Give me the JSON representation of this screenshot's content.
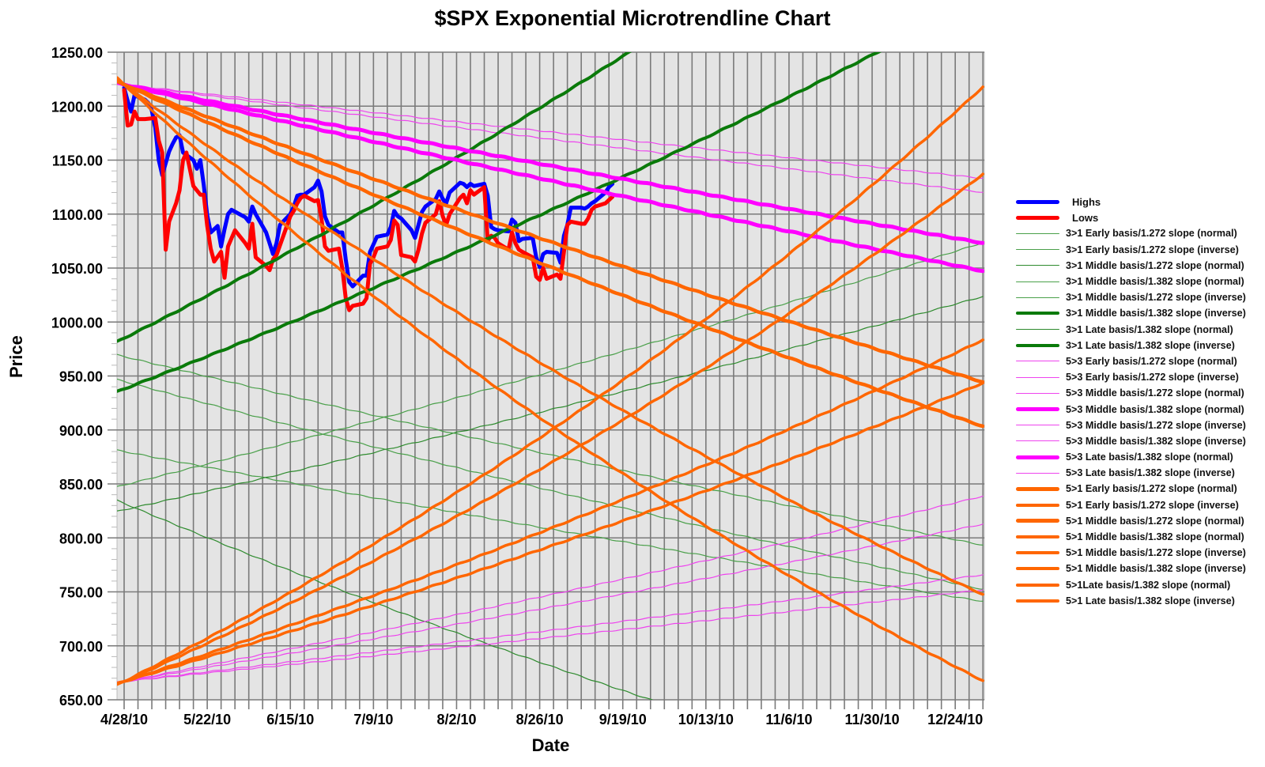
{
  "chart_data": {
    "type": "line",
    "title": "$SPX Exponential Microtrendline Chart",
    "xlabel": "Date",
    "ylabel": "Price",
    "ylim": [
      650,
      1250
    ],
    "yticks": [
      "1250.00",
      "1200.00",
      "1150.00",
      "1100.00",
      "1050.00",
      "1000.00",
      "950.00",
      "900.00",
      "850.00",
      "800.00",
      "750.00",
      "700.00",
      "650.00"
    ],
    "xtick_labels": [
      "4/28/10",
      "5/22/10",
      "6/15/10",
      "7/9/10",
      "8/2/10",
      "8/26/10",
      "9/19/10",
      "10/13/10",
      "11/6/10",
      "11/30/10",
      "12/24/10"
    ],
    "x_start": "4/28/10",
    "x_end": "1/1/11",
    "grid": true,
    "vertical_grid_every_days": 4,
    "legend_position": "right",
    "series": [
      {
        "name": "Highs",
        "color": "#0000ff",
        "width": 5,
        "kind": "price",
        "points": [
          [
            0,
            1217
          ],
          [
            1,
            1205
          ],
          [
            2,
            1195
          ],
          [
            3,
            1210
          ],
          [
            6,
            1206
          ],
          [
            7,
            1203
          ],
          [
            8,
            1196
          ],
          [
            9,
            1180
          ],
          [
            10,
            1150
          ],
          [
            11,
            1136
          ],
          [
            13,
            1158
          ],
          [
            14,
            1165
          ],
          [
            15,
            1171
          ],
          [
            16,
            1173
          ],
          [
            17,
            1157
          ],
          [
            20,
            1150
          ],
          [
            21,
            1142
          ],
          [
            22,
            1150
          ],
          [
            23,
            1127
          ],
          [
            24,
            1099
          ],
          [
            25,
            1083
          ],
          [
            27,
            1089
          ],
          [
            28,
            1070
          ],
          [
            29,
            1086
          ],
          [
            30,
            1100
          ],
          [
            31,
            1104
          ],
          [
            35,
            1097
          ],
          [
            36,
            1093
          ],
          [
            37,
            1107
          ],
          [
            38,
            1100
          ],
          [
            41,
            1083
          ],
          [
            42,
            1073
          ],
          [
            43,
            1063
          ],
          [
            44,
            1073
          ],
          [
            45,
            1090
          ],
          [
            48,
            1100
          ],
          [
            49,
            1107
          ],
          [
            50,
            1117
          ],
          [
            51,
            1118
          ],
          [
            52,
            1118
          ],
          [
            55,
            1125
          ],
          [
            56,
            1131
          ],
          [
            57,
            1121
          ],
          [
            58,
            1098
          ],
          [
            59,
            1090
          ],
          [
            62,
            1083
          ],
          [
            63,
            1083
          ],
          [
            64,
            1058
          ],
          [
            65,
            1037
          ],
          [
            66,
            1033
          ],
          [
            69,
            1043
          ],
          [
            70,
            1043
          ],
          [
            71,
            1065
          ],
          [
            72,
            1072
          ],
          [
            73,
            1079
          ],
          [
            76,
            1081
          ],
          [
            77,
            1088
          ],
          [
            78,
            1103
          ],
          [
            79,
            1098
          ],
          [
            80,
            1096
          ],
          [
            83,
            1085
          ],
          [
            84,
            1078
          ],
          [
            85,
            1090
          ],
          [
            86,
            1102
          ],
          [
            87,
            1107
          ],
          [
            90,
            1114
          ],
          [
            91,
            1121
          ],
          [
            92,
            1114
          ],
          [
            93,
            1110
          ],
          [
            94,
            1120
          ],
          [
            97,
            1129
          ],
          [
            98,
            1128
          ],
          [
            99,
            1125
          ],
          [
            100,
            1128
          ],
          [
            101,
            1126
          ],
          [
            104,
            1128
          ],
          [
            105,
            1117
          ],
          [
            106,
            1088
          ],
          [
            107,
            1086
          ],
          [
            108,
            1085
          ],
          [
            111,
            1084
          ],
          [
            112,
            1095
          ],
          [
            113,
            1092
          ],
          [
            114,
            1075
          ],
          [
            115,
            1077
          ],
          [
            118,
            1078
          ],
          [
            119,
            1060
          ],
          [
            120,
            1051
          ],
          [
            121,
            1063
          ],
          [
            122,
            1065
          ],
          [
            125,
            1064
          ],
          [
            126,
            1055
          ],
          [
            127,
            1080
          ],
          [
            128,
            1090
          ],
          [
            129,
            1106
          ],
          [
            132,
            1106
          ],
          [
            133,
            1105
          ],
          [
            134,
            1107
          ],
          [
            135,
            1110
          ],
          [
            136,
            1112
          ],
          [
            139,
            1120
          ],
          [
            140,
            1125
          ],
          [
            141,
            1128
          ]
        ]
      },
      {
        "name": "Lows",
        "color": "#ff0000",
        "width": 5,
        "kind": "price",
        "points": [
          [
            0,
            1215
          ],
          [
            1,
            1182
          ],
          [
            2,
            1183
          ],
          [
            3,
            1195
          ],
          [
            4,
            1188
          ],
          [
            6,
            1188
          ],
          [
            9,
            1189
          ],
          [
            10,
            1168
          ],
          [
            11,
            1157
          ],
          [
            12,
            1067
          ],
          [
            13,
            1093
          ],
          [
            15,
            1110
          ],
          [
            16,
            1122
          ],
          [
            17,
            1150
          ],
          [
            18,
            1157
          ],
          [
            20,
            1126
          ],
          [
            22,
            1118
          ],
          [
            23,
            1118
          ],
          [
            24,
            1089
          ],
          [
            25,
            1068
          ],
          [
            26,
            1056
          ],
          [
            28,
            1065
          ],
          [
            29,
            1041
          ],
          [
            30,
            1070
          ],
          [
            32,
            1085
          ],
          [
            35,
            1073
          ],
          [
            36,
            1068
          ],
          [
            37,
            1091
          ],
          [
            38,
            1060
          ],
          [
            41,
            1052
          ],
          [
            42,
            1048
          ],
          [
            43,
            1058
          ],
          [
            44,
            1062
          ],
          [
            48,
            1098
          ],
          [
            49,
            1103
          ],
          [
            50,
            1110
          ],
          [
            51,
            1115
          ],
          [
            52,
            1117
          ],
          [
            55,
            1112
          ],
          [
            56,
            1113
          ],
          [
            57,
            1095
          ],
          [
            58,
            1070
          ],
          [
            59,
            1066
          ],
          [
            62,
            1068
          ],
          [
            63,
            1050
          ],
          [
            64,
            1022
          ],
          [
            65,
            1011
          ],
          [
            66,
            1015
          ],
          [
            69,
            1017
          ],
          [
            70,
            1022
          ],
          [
            71,
            1054
          ],
          [
            72,
            1060
          ],
          [
            73,
            1068
          ],
          [
            76,
            1070
          ],
          [
            77,
            1076
          ],
          [
            78,
            1094
          ],
          [
            79,
            1090
          ],
          [
            80,
            1062
          ],
          [
            83,
            1060
          ],
          [
            84,
            1056
          ],
          [
            85,
            1067
          ],
          [
            86,
            1082
          ],
          [
            87,
            1092
          ],
          [
            90,
            1100
          ],
          [
            91,
            1112
          ],
          [
            92,
            1098
          ],
          [
            93,
            1090
          ],
          [
            94,
            1100
          ],
          [
            97,
            1115
          ],
          [
            98,
            1118
          ],
          [
            99,
            1110
          ],
          [
            100,
            1122
          ],
          [
            101,
            1118
          ],
          [
            104,
            1125
          ],
          [
            105,
            1075
          ],
          [
            106,
            1080
          ],
          [
            107,
            1078
          ],
          [
            108,
            1073
          ],
          [
            111,
            1067
          ],
          [
            112,
            1083
          ],
          [
            113,
            1073
          ],
          [
            114,
            1067
          ],
          [
            115,
            1065
          ],
          [
            118,
            1060
          ],
          [
            119,
            1042
          ],
          [
            120,
            1039
          ],
          [
            121,
            1050
          ],
          [
            122,
            1040
          ],
          [
            125,
            1044
          ],
          [
            126,
            1040
          ],
          [
            127,
            1065
          ],
          [
            128,
            1090
          ],
          [
            129,
            1093
          ],
          [
            132,
            1091
          ],
          [
            133,
            1091
          ],
          [
            134,
            1096
          ],
          [
            135,
            1104
          ],
          [
            136,
            1107
          ],
          [
            139,
            1110
          ],
          [
            140,
            1113
          ],
          [
            141,
            1116
          ]
        ]
      },
      {
        "name": "3>1 Early basis/1.272 slope (normal)",
        "color": "#4aa04a",
        "width": 1.2,
        "kind": "trend",
        "start": 849,
        "end": 1074
      },
      {
        "name": "3>1 Early basis/1.272 slope (inverse)",
        "color": "#4aa04a",
        "width": 1.2,
        "kind": "trend",
        "start": 880,
        "end": 741
      },
      {
        "name": "3>1 Middle basis/1.272 slope (normal)",
        "color": "#2e8b2e",
        "width": 1.2,
        "kind": "trend",
        "start": 826,
        "end": 1024
      },
      {
        "name": "3>1 Middle basis/1.382 slope (normal)",
        "color": "#4aa04a",
        "width": 1.2,
        "kind": "trend",
        "start": 968,
        "end": 793
      },
      {
        "name": "3>1 Middle basis/1.272 slope (inverse)",
        "color": "#4aa04a",
        "width": 1.2,
        "kind": "trend",
        "start": 945,
        "end": 752
      },
      {
        "name": "3>1 Middle basis/1.382 slope (inverse)",
        "color": "#0a7a0a",
        "width": 4,
        "kind": "trend",
        "start": 985,
        "end": 1478
      },
      {
        "name": "3>1 Late basis/1.382 slope (normal)",
        "color": "#2e8b2e",
        "width": 1.2,
        "kind": "trend",
        "start": 832,
        "end": 556
      },
      {
        "name": "3>1 Late basis/1.382 slope (inverse)",
        "color": "#0a7a0a",
        "width": 4,
        "kind": "trend",
        "start": 938,
        "end": 1302
      },
      {
        "name": "5>3 Early basis/1.272 slope (normal)",
        "color": "#ee44ee",
        "width": 1.2,
        "kind": "trend",
        "start": 1220,
        "end": 1133
      },
      {
        "name": "5>3 Early basis/1.272 slope (inverse)",
        "color": "#ee44ee",
        "width": 1.2,
        "kind": "trend",
        "start": 667,
        "end": 839
      },
      {
        "name": "5>3 Middle basis/1.272 slope (normal)",
        "color": "#ee44ee",
        "width": 1.2,
        "kind": "trend",
        "start": 1220,
        "end": 1120
      },
      {
        "name": "5>3 Middle basis/1.382 slope (normal)",
        "color": "#ff00ff",
        "width": 5,
        "kind": "trend",
        "start": 1220,
        "end": 1073
      },
      {
        "name": "5>3 Middle basis/1.272 slope (inverse)",
        "color": "#ee44ee",
        "width": 1.2,
        "kind": "trend",
        "start": 667,
        "end": 813
      },
      {
        "name": "5>3 Middle basis/1.382 slope (inverse)",
        "color": "#ee44ee",
        "width": 1.2,
        "kind": "trend",
        "start": 667,
        "end": 766
      },
      {
        "name": "5>3 Late basis/1.382 slope (normal)",
        "color": "#ff00ff",
        "width": 5,
        "kind": "trend",
        "start": 1220,
        "end": 1047
      },
      {
        "name": "5>3 Late basis/1.382 slope (inverse)",
        "color": "#ee44ee",
        "width": 1.2,
        "kind": "trend",
        "start": 667,
        "end": 752
      },
      {
        "name": "5>1 Early basis/1.272 slope (normal)",
        "color": "#ff6600",
        "width": 4.5,
        "kind": "trend",
        "start": 1220,
        "end": 944
      },
      {
        "name": "5>1 Early basis/1.272 slope (inverse)",
        "color": "#ff6600",
        "width": 3.5,
        "kind": "trend",
        "start": 667,
        "end": 1219
      },
      {
        "name": "5>1 Middle basis/1.272 slope (normal)",
        "color": "#ff6600",
        "width": 4.5,
        "kind": "trend",
        "start": 1220,
        "end": 903
      },
      {
        "name": "5>1 Middle basis/1.382 slope (normal)",
        "color": "#ff6600",
        "width": 3.5,
        "kind": "trend",
        "start": 1220,
        "end": 747
      },
      {
        "name": "5>1 Middle basis/1.272 slope (inverse)",
        "color": "#ff6600",
        "width": 3.5,
        "kind": "trend",
        "start": 667,
        "end": 1138
      },
      {
        "name": "5>1 Middle basis/1.382 slope (inverse)",
        "color": "#ff6600",
        "width": 3.5,
        "kind": "trend",
        "start": 667,
        "end": 984
      },
      {
        "name": "5>1Late basis/1.382 slope (normal)",
        "color": "#ff6600",
        "width": 3.5,
        "kind": "trend",
        "start": 1220,
        "end": 667
      },
      {
        "name": "5>1 Late basis/1.382 slope (inverse)",
        "color": "#ff6600",
        "width": 3.5,
        "kind": "trend",
        "start": 667,
        "end": 944
      }
    ]
  },
  "colors": {
    "plot_background": "#e4e4e4",
    "grid": "#8a8a8a",
    "highs": "#0000ff",
    "lows": "#ff0000",
    "green": "#0a7a0a",
    "magenta": "#ff00ff",
    "orange": "#ff6600"
  }
}
